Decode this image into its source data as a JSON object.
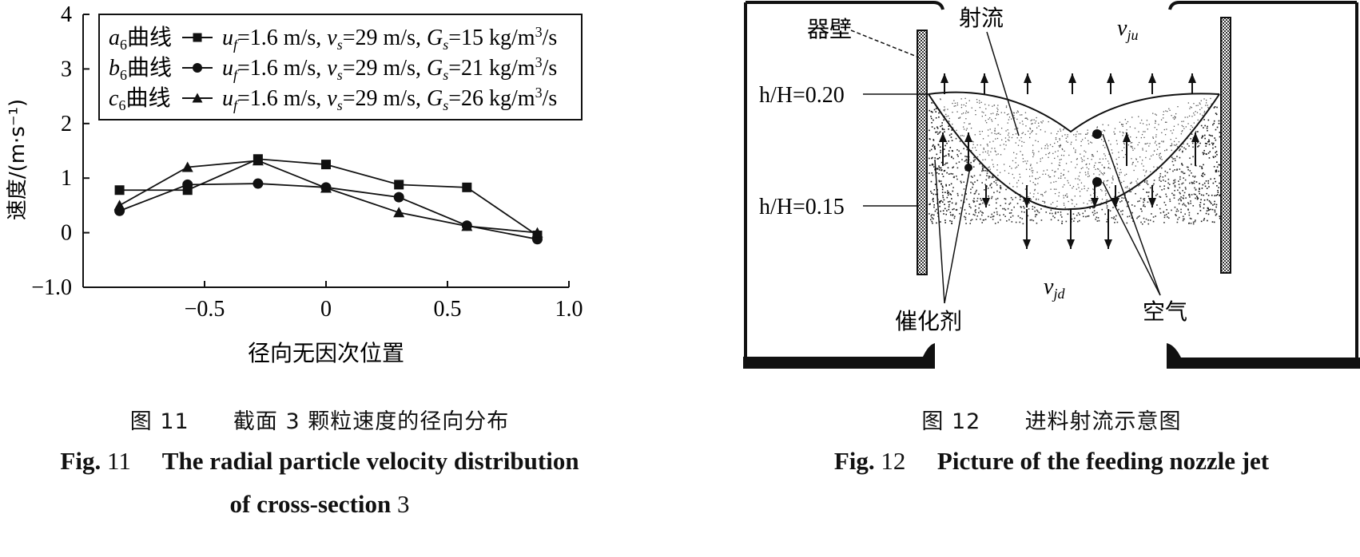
{
  "figure11": {
    "caption_cn_num": "图 11",
    "caption_cn_text": "截面 3 颗粒速度的径向分布",
    "caption_en_prefix": "Fig.",
    "caption_en_num": "11",
    "caption_en_text": "The radial particle velocity distribution",
    "caption_en_line2_text": "of cross-section",
    "caption_en_line2_num": "3"
  },
  "chart_data": {
    "type": "line",
    "xlabel": "径向无因次位置",
    "ylabel": "速度/(m·s⁻¹)",
    "xlim": [
      -1.0,
      1.0
    ],
    "ylim": [
      -1.0,
      4.0
    ],
    "x_ticks": [
      -0.5,
      0,
      0.5,
      1.0
    ],
    "x_tick_labels": [
      "−0.5",
      "0",
      "0.5",
      "1.0"
    ],
    "y_ticks": [
      -1.0,
      0,
      1,
      2,
      3,
      4
    ],
    "y_tick_labels": [
      "−1.0",
      "0",
      "1",
      "2",
      "3",
      "4"
    ],
    "grid": false,
    "legend_position": "top-left",
    "series": [
      {
        "name": "a6曲线",
        "marker": "square",
        "legend": {
          "curve_letter": "a",
          "curve_sub": "6",
          "curve_word": "曲线",
          "uf": "u",
          "uf_sub": "f",
          "uf_val": "=1.6 m/s,",
          "vs": "v",
          "vs_sub": "s",
          "vs_val": "=29 m/s,",
          "gs": "G",
          "gs_sub": "s",
          "gs_val": "=15 kg/m",
          "gs_sup": "3",
          "gs_tail": "/s"
        },
        "x": [
          -0.85,
          -0.57,
          -0.28,
          0.0,
          0.3,
          0.58,
          0.87
        ],
        "y": [
          0.78,
          0.78,
          1.35,
          1.25,
          0.88,
          0.83,
          -0.05
        ]
      },
      {
        "name": "b6曲线",
        "marker": "circle",
        "legend": {
          "curve_letter": "b",
          "curve_sub": "6",
          "curve_word": "曲线",
          "uf": "u",
          "uf_sub": "f",
          "uf_val": "=1.6 m/s,",
          "vs": "v",
          "vs_sub": "s",
          "vs_val": "=29 m/s,",
          "gs": "G",
          "gs_sub": "s",
          "gs_val": "=21 kg/m",
          "gs_sup": "3",
          "gs_tail": "/s"
        },
        "x": [
          -0.85,
          -0.57,
          -0.28,
          0.0,
          0.3,
          0.58,
          0.87
        ],
        "y": [
          0.4,
          0.88,
          0.9,
          0.83,
          0.65,
          0.13,
          -0.12
        ]
      },
      {
        "name": "c6曲线",
        "marker": "triangle",
        "legend": {
          "curve_letter": "c",
          "curve_sub": "6",
          "curve_word": "曲线",
          "uf": "u",
          "uf_sub": "f",
          "uf_val": "=1.6 m/s,",
          "vs": "v",
          "vs_sub": "s",
          "vs_val": "=29 m/s,",
          "gs": "G",
          "gs_sub": "s",
          "gs_val": "=26 kg/m",
          "gs_sup": "3",
          "gs_tail": "/s"
        },
        "x": [
          -0.85,
          -0.57,
          -0.28,
          0.0,
          0.3,
          0.58,
          0.87
        ],
        "y": [
          0.5,
          1.2,
          1.32,
          0.82,
          0.37,
          0.12,
          0.0
        ]
      }
    ]
  },
  "figure12": {
    "label_wall": "器壁",
    "label_jet": "射流",
    "label_vju_v": "v",
    "label_vju_sub": "ju",
    "label_h20": "h/H=0.20",
    "label_h15": "h/H=0.15",
    "label_vjd_v": "v",
    "label_vjd_sub": "jd",
    "label_catalyst": "催化剂",
    "label_air": "空气",
    "caption_cn_num": "图 12",
    "caption_cn_text": "进料射流示意图",
    "caption_en_prefix": "Fig.",
    "caption_en_num": "12",
    "caption_en_text": "Picture of the feeding nozzle jet"
  }
}
